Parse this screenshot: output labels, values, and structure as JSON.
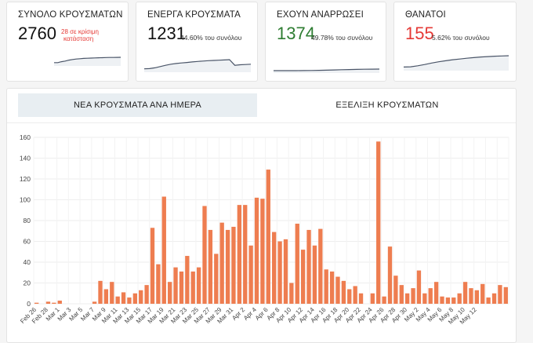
{
  "cards": [
    {
      "title": "ΣΥΝΟΛΟ ΚΡΟΥΣΜΑΤΩΝ",
      "value": "2760",
      "note_line1": "28 σε κρίσιμη",
      "note_line2": "κατάσταση",
      "spark": [
        0.15,
        0.15,
        0.3,
        0.4,
        0.55,
        0.65,
        0.72,
        0.78,
        0.82,
        0.85,
        0.88,
        0.9,
        0.92,
        0.94,
        0.96,
        0.97,
        0.98,
        0.99,
        1.0
      ]
    },
    {
      "title": "ΕΝΕΡΓΑ ΚΡΟΥΣΜΑΤΑ",
      "value": "1231",
      "sub": "44.60% του συνόλου",
      "spark": [
        0.1,
        0.12,
        0.2,
        0.32,
        0.45,
        0.55,
        0.62,
        0.68,
        0.72,
        0.78,
        0.82,
        0.86,
        0.9,
        0.92,
        0.95,
        0.97,
        1.0,
        0.45,
        0.5,
        0.52,
        0.55
      ]
    },
    {
      "title": "ΕΧΟΥΝ ΑΝΑΡΡΩΣΕΙ",
      "value": "1374",
      "sub": "49.78% του συνόλου",
      "spark": [
        0.0,
        0.0,
        0.0,
        0.02,
        0.05,
        0.1,
        0.18,
        0.3,
        0.45,
        0.6,
        0.72,
        0.82,
        0.9,
        0.96,
        1.0
      ]
    },
    {
      "title": "ΘΑΝΑΤΟΙ",
      "value": "155",
      "sub": "5.62% του συνόλου",
      "spark": [
        0.1,
        0.12,
        0.2,
        0.3,
        0.42,
        0.52,
        0.6,
        0.68,
        0.74,
        0.8,
        0.85,
        0.9,
        0.93,
        0.96,
        0.98,
        1.0
      ]
    }
  ],
  "tabs": [
    "ΝΕΑ ΚΡΟΥΣΜΑΤΑ ΑΝΑ ΗΜΕΡΑ",
    "ΕΞΕΛΙΞΗ ΚΡΟΥΣΜΑΤΩΝ"
  ],
  "colors": {
    "bar": "#ee7d50",
    "grid": "#eeeeee",
    "spark": "#4a5568",
    "green": "#2e7d32",
    "red": "#e53935"
  },
  "chart_data": {
    "type": "bar",
    "title": "",
    "xlabel": "",
    "ylabel": "",
    "ylim": [
      0,
      160
    ],
    "yticks": [
      0,
      20,
      40,
      60,
      80,
      100,
      120,
      140,
      160
    ],
    "grid": true,
    "tick_labels": [
      "Feb 26",
      "Feb 28",
      "Mar 1",
      "Mar 3",
      "Mar 5",
      "Mar 7",
      "Mar 9",
      "Mar 11",
      "Mar 13",
      "Mar 15",
      "Mar 17",
      "Mar 19",
      "Mar 21",
      "Mar 23",
      "Mar 25",
      "Mar 27",
      "Mar 29",
      "Mar 31",
      "Apr 2",
      "Apr 4",
      "Apr 6",
      "Apr 8",
      "Apr 10",
      "Apr 12",
      "Apr 14",
      "Apr 16",
      "Apr 18",
      "Apr 20",
      "Apr 22",
      "Apr 24",
      "Apr 26",
      "Apr 28",
      "Apr 30",
      "May 2",
      "May 4",
      "May 6",
      "May 8",
      "May 10",
      "May 12"
    ],
    "values": [
      1,
      0,
      2,
      1,
      3,
      0,
      0,
      0,
      0,
      0,
      2,
      22,
      14,
      21,
      7,
      11,
      6,
      10,
      13,
      18,
      73,
      38,
      103,
      21,
      35,
      31,
      46,
      31,
      35,
      94,
      71,
      48,
      78,
      71,
      74,
      95,
      95,
      56,
      102,
      101,
      129,
      69,
      60,
      62,
      20,
      77,
      52,
      71,
      56,
      72,
      33,
      31,
      26,
      22,
      14,
      17,
      10,
      0,
      10,
      156,
      7,
      55,
      27,
      18,
      10,
      15,
      32,
      10,
      15,
      21,
      7,
      6,
      6,
      10,
      21,
      15,
      13,
      19,
      6,
      10,
      18,
      16
    ]
  }
}
